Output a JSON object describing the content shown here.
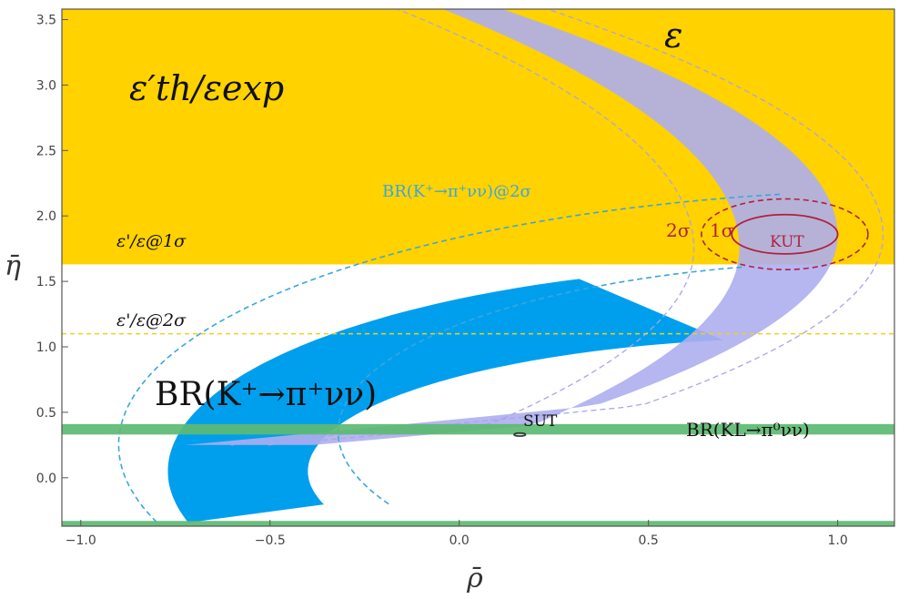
{
  "chart_data": {
    "type": "area",
    "title": "",
    "xlabel": "ρ̄",
    "ylabel": "η̄",
    "xlim": [
      -1.05,
      1.15
    ],
    "ylim": [
      -0.37,
      3.58
    ],
    "x_ticks": [
      -1.0,
      -0.5,
      0.0,
      0.5,
      1.0
    ],
    "x_tick_labels": [
      "−1.0",
      "−0.5",
      "0.0",
      "0.5",
      "1.0"
    ],
    "y_ticks": [
      0.0,
      0.5,
      1.0,
      1.5,
      2.0,
      2.5,
      3.0,
      3.5
    ],
    "y_tick_labels": [
      "0.0",
      "0.5",
      "1.0",
      "1.5",
      "2.0",
      "2.5",
      "3.0",
      "3.5"
    ],
    "grid": false,
    "colors": {
      "epsprime_region": "#ffd200",
      "br_kplus_band": "#009fee",
      "epsilon_band": "#aeaeee",
      "br_kl_band": "#5cba72",
      "kut_contour": "#b02040",
      "sut_contour": "#333333",
      "br_kplus_2sigma_line": "#3aa6de",
      "epsilon_2sigma_line": "#a8a4ee",
      "epsprime_2sigma_line": "#eed21a"
    },
    "regions": {
      "epsprime_1sigma_lower_eta": 1.63,
      "epsprime_2sigma_lower_eta": 1.1,
      "br_kl_bands": [
        [
          0.33,
          0.41
        ],
        [
          -0.37,
          -0.33
        ]
      ],
      "kut_center": [
        0.86,
        1.86
      ],
      "sut_center": [
        0.16,
        0.33
      ]
    },
    "annotations": {
      "epsprime_main_label": "ε′th/εexp",
      "epsilon_label": "ε",
      "br_kplus_2sigma_label": "BR(K⁺→π⁺νν)@2σ",
      "epsprime_1sigma_label": "ε'/ε@1σ",
      "epsprime_2sigma_label": "ε'/ε@2σ",
      "br_kplus_label": "BR(K⁺→π⁺νν)",
      "br_kl_label": "BR(KL→π⁰νν)",
      "sut_label": "SUT",
      "kut_label": "KUT",
      "sigma2_label": "2σ",
      "sigma1_label": "1σ"
    }
  }
}
